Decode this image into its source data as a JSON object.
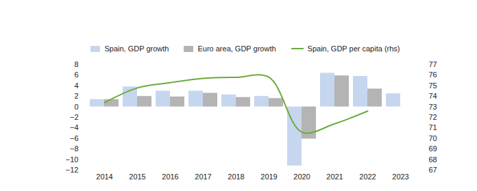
{
  "chart_data": {
    "type": "bar",
    "categories": [
      "2014",
      "2015",
      "2016",
      "2017",
      "2018",
      "2019",
      "2020",
      "2021",
      "2022",
      "2023"
    ],
    "series": [
      {
        "name": "Spain, GDP growth",
        "type": "bar",
        "color": "#c6d6ef",
        "values": [
          1.4,
          3.8,
          3.0,
          3.0,
          2.3,
          2.0,
          -11.2,
          6.4,
          5.8,
          2.5
        ]
      },
      {
        "name": "Euro area, GDP growth",
        "type": "bar",
        "color": "#b4b4b4",
        "values": [
          1.4,
          2.0,
          1.9,
          2.6,
          1.8,
          1.6,
          -6.1,
          5.9,
          3.4,
          null
        ]
      },
      {
        "name": "Spain, GDP per capita (rhs)",
        "type": "line",
        "axis": "y2",
        "color": "#6aaa3a",
        "values": [
          73.4,
          74.8,
          75.3,
          75.7,
          75.8,
          75.8,
          70.6,
          71.4,
          72.6,
          null
        ]
      }
    ],
    "ylim": [
      -12,
      8
    ],
    "yticks": [
      -12,
      -10,
      -8,
      -6,
      -4,
      -2,
      0,
      2,
      4,
      6,
      8
    ],
    "y2lim": [
      67,
      77
    ],
    "y2ticks": [
      67,
      68,
      69,
      70,
      71,
      72,
      73,
      74,
      75,
      76,
      77
    ],
    "legend": "top"
  }
}
